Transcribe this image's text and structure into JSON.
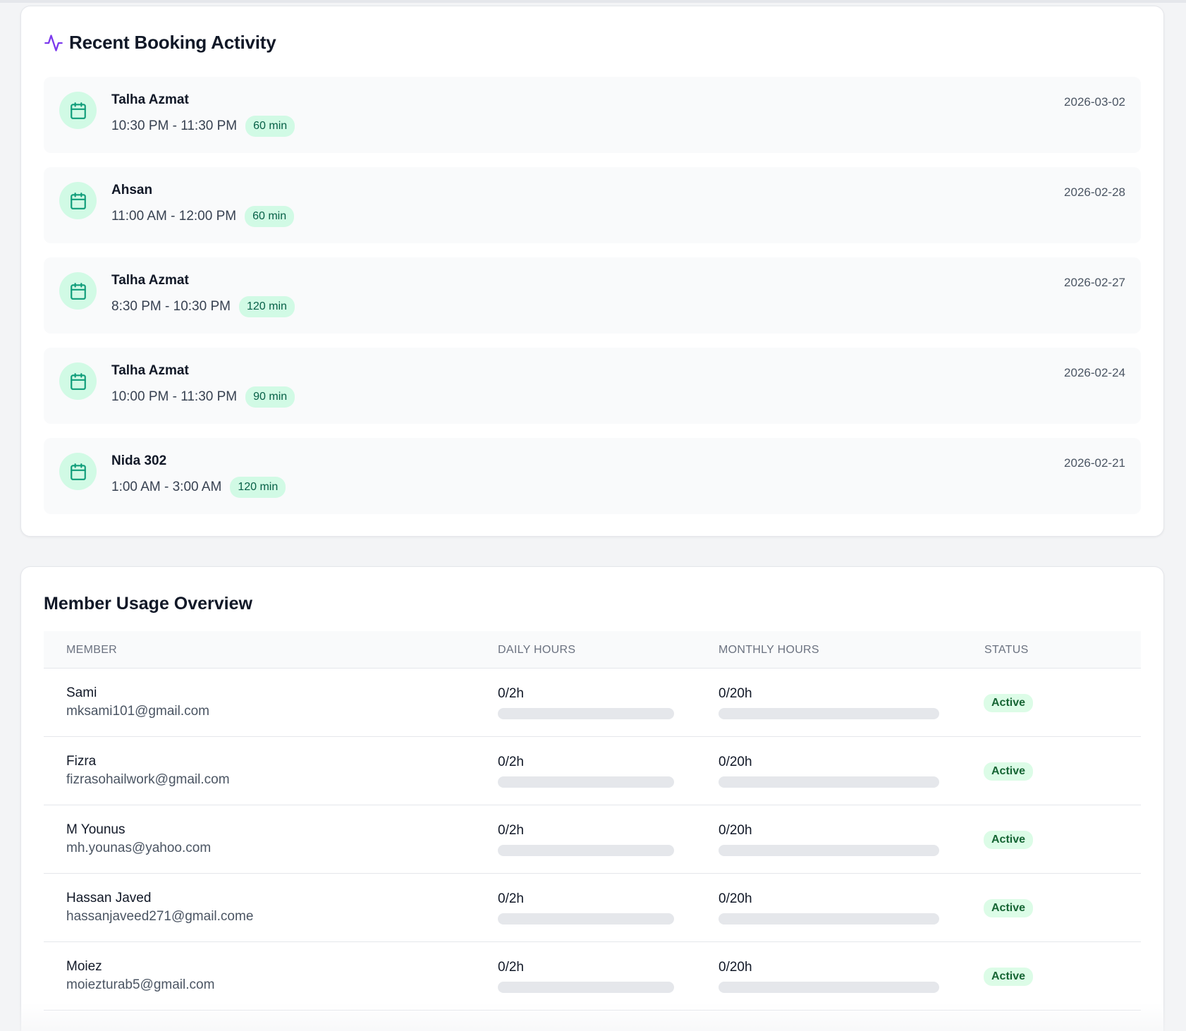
{
  "colors": {
    "accent_purple": "#7c3aed",
    "booking_icon": "#0f9d7a",
    "badge_bg": "#d1fae5",
    "status_green": "#166534"
  },
  "recent_activity": {
    "title": "Recent Booking Activity",
    "icon": "pulse-icon",
    "bookings": [
      {
        "name": "Talha Azmat",
        "time": "10:30 PM - 11:30 PM",
        "duration": "60 min",
        "date": "2026-03-02"
      },
      {
        "name": "Ahsan",
        "time": "11:00 AM - 12:00 PM",
        "duration": "60 min",
        "date": "2026-02-28"
      },
      {
        "name": "Talha Azmat",
        "time": "8:30 PM - 10:30 PM",
        "duration": "120 min",
        "date": "2026-02-27"
      },
      {
        "name": "Talha Azmat",
        "time": "10:00 PM - 11:30 PM",
        "duration": "90 min",
        "date": "2026-02-24"
      },
      {
        "name": "Nida 302",
        "time": "1:00 AM - 3:00 AM",
        "duration": "120 min",
        "date": "2026-02-21"
      }
    ]
  },
  "member_usage": {
    "title": "Member Usage Overview",
    "columns": {
      "member": "MEMBER",
      "daily": "DAILY HOURS",
      "monthly": "MONTHLY HOURS",
      "status": "STATUS"
    },
    "rows": [
      {
        "name": "Sami",
        "email": "mksami101@gmail.com",
        "daily": "0/2h",
        "daily_fraction": 0,
        "monthly": "0/20h",
        "monthly_fraction": 0,
        "status": "Active"
      },
      {
        "name": "Fizra",
        "email": "fizrasohailwork@gmail.com",
        "daily": "0/2h",
        "daily_fraction": 0,
        "monthly": "0/20h",
        "monthly_fraction": 0,
        "status": "Active"
      },
      {
        "name": "M Younus",
        "email": "mh.younas@yahoo.com",
        "daily": "0/2h",
        "daily_fraction": 0,
        "monthly": "0/20h",
        "monthly_fraction": 0,
        "status": "Active"
      },
      {
        "name": "Hassan Javed",
        "email": "hassanjaveed271@gmail.come",
        "daily": "0/2h",
        "daily_fraction": 0,
        "monthly": "0/20h",
        "monthly_fraction": 0,
        "status": "Active"
      },
      {
        "name": "Moiez",
        "email": "moiezturab5@gmail.com",
        "daily": "0/2h",
        "daily_fraction": 0,
        "monthly": "0/20h",
        "monthly_fraction": 0,
        "status": "Active"
      }
    ]
  }
}
